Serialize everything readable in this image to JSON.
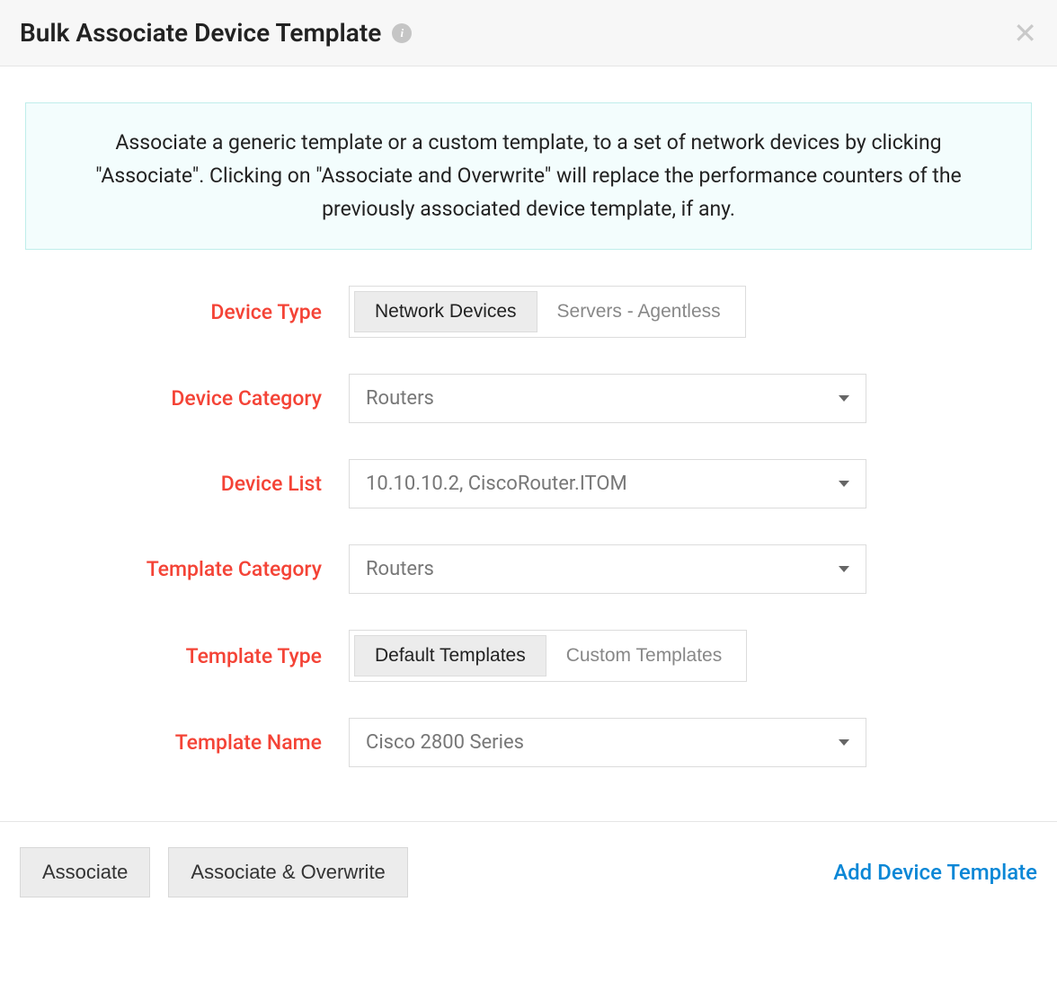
{
  "header": {
    "title": "Bulk Associate Device Template"
  },
  "info_box": {
    "text": "Associate a generic template or a custom template, to a set of network devices by clicking \"Associate\". Clicking on \"Associate and Overwrite\" will replace the performance counters of the previously associated device template, if any."
  },
  "form": {
    "device_type": {
      "label": "Device Type",
      "option_active": "Network Devices",
      "option_inactive": "Servers - Agentless"
    },
    "device_category": {
      "label": "Device Category",
      "value": "Routers"
    },
    "device_list": {
      "label": "Device List",
      "value": "10.10.10.2, CiscoRouter.ITOM"
    },
    "template_category": {
      "label": "Template Category",
      "value": "Routers"
    },
    "template_type": {
      "label": "Template Type",
      "option_active": "Default Templates",
      "option_inactive": "Custom Templates"
    },
    "template_name": {
      "label": "Template Name",
      "value": "Cisco 2800 Series"
    }
  },
  "footer": {
    "associate": "Associate",
    "associate_overwrite": "Associate & Overwrite",
    "add_template": "Add Device Template"
  },
  "colors": {
    "label_color": "#f44336",
    "info_bg": "#f3fdfd",
    "info_border": "#bfeeeb",
    "link_color": "#0b87d6",
    "header_bg": "#f7f7f7"
  }
}
